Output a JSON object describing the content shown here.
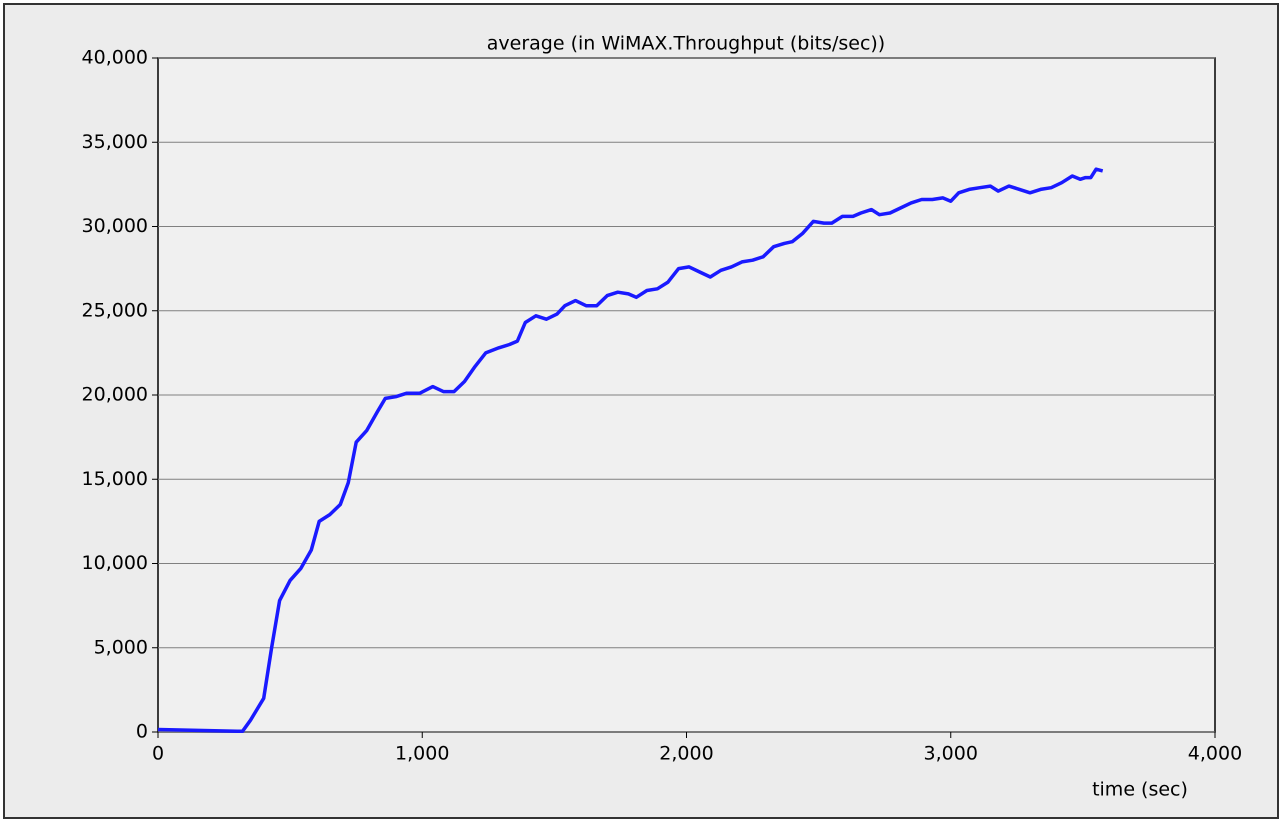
{
  "chart_data": {
    "type": "line",
    "title": "average (in WiMAX.Throughput (bits/sec))",
    "x_label": "time (sec)",
    "x": [
      0,
      300,
      320,
      350,
      400,
      430,
      460,
      500,
      540,
      580,
      610,
      650,
      690,
      720,
      750,
      790,
      830,
      860,
      900,
      940,
      990,
      1040,
      1080,
      1120,
      1160,
      1200,
      1240,
      1290,
      1330,
      1360,
      1390,
      1430,
      1470,
      1510,
      1540,
      1580,
      1620,
      1660,
      1700,
      1740,
      1780,
      1810,
      1850,
      1890,
      1930,
      1970,
      2010,
      2050,
      2090,
      2130,
      2170,
      2210,
      2250,
      2290,
      2330,
      2370,
      2400,
      2440,
      2480,
      2520,
      2550,
      2590,
      2630,
      2660,
      2700,
      2730,
      2770,
      2810,
      2850,
      2890,
      2930,
      2970,
      3000,
      3030,
      3070,
      3110,
      3150,
      3180,
      3220,
      3260,
      3300,
      3340,
      3380,
      3420,
      3460,
      3490,
      3510,
      3530,
      3550,
      3575
    ],
    "series": [
      {
        "name": "average (in WiMAX.Throughput (bits/sec))",
        "color": "#1a1aff",
        "values": [
          150,
          50,
          50,
          700,
          2000,
          5000,
          7800,
          9000,
          9700,
          10800,
          12500,
          12900,
          13500,
          14800,
          17200,
          17900,
          19000,
          19800,
          19900,
          20100,
          20100,
          20500,
          20200,
          20200,
          20800,
          21700,
          22500,
          22800,
          23000,
          23200,
          24300,
          24700,
          24500,
          24800,
          25300,
          25600,
          25300,
          25300,
          25900,
          26100,
          26000,
          25800,
          26200,
          26300,
          26700,
          27500,
          27600,
          27300,
          27000,
          27400,
          27600,
          27900,
          28000,
          28200,
          28800,
          29000,
          29100,
          29600,
          30300,
          30200,
          30200,
          30600,
          30600,
          30800,
          31000,
          30700,
          30800,
          31100,
          31400,
          31600,
          31600,
          31700,
          31500,
          32000,
          32200,
          32300,
          32400,
          32100,
          32400,
          32200,
          32000,
          32200,
          32300,
          32600,
          33000,
          32800,
          32900,
          32900,
          33400,
          33300
        ]
      }
    ],
    "xlim": [
      0,
      4000
    ],
    "xticks": [
      0,
      {
        "value": 1000,
        "label": "1,000"
      },
      {
        "value": 2000,
        "label": "2,000"
      },
      {
        "value": 3000,
        "label": "3,000"
      },
      {
        "value": 4000,
        "label": "4,000"
      }
    ],
    "ylim": [
      0,
      40000
    ],
    "yticks": [
      0,
      {
        "value": 5000,
        "label": "5,000"
      },
      {
        "value": 10000,
        "label": "10,000"
      },
      {
        "value": 15000,
        "label": "15,000"
      },
      {
        "value": 20000,
        "label": "20,000"
      },
      {
        "value": 25000,
        "label": "25,000"
      },
      {
        "value": 30000,
        "label": "30,000"
      },
      {
        "value": 35000,
        "label": "35,000"
      },
      {
        "value": 40000,
        "label": "40,000"
      }
    ],
    "grid": true
  }
}
